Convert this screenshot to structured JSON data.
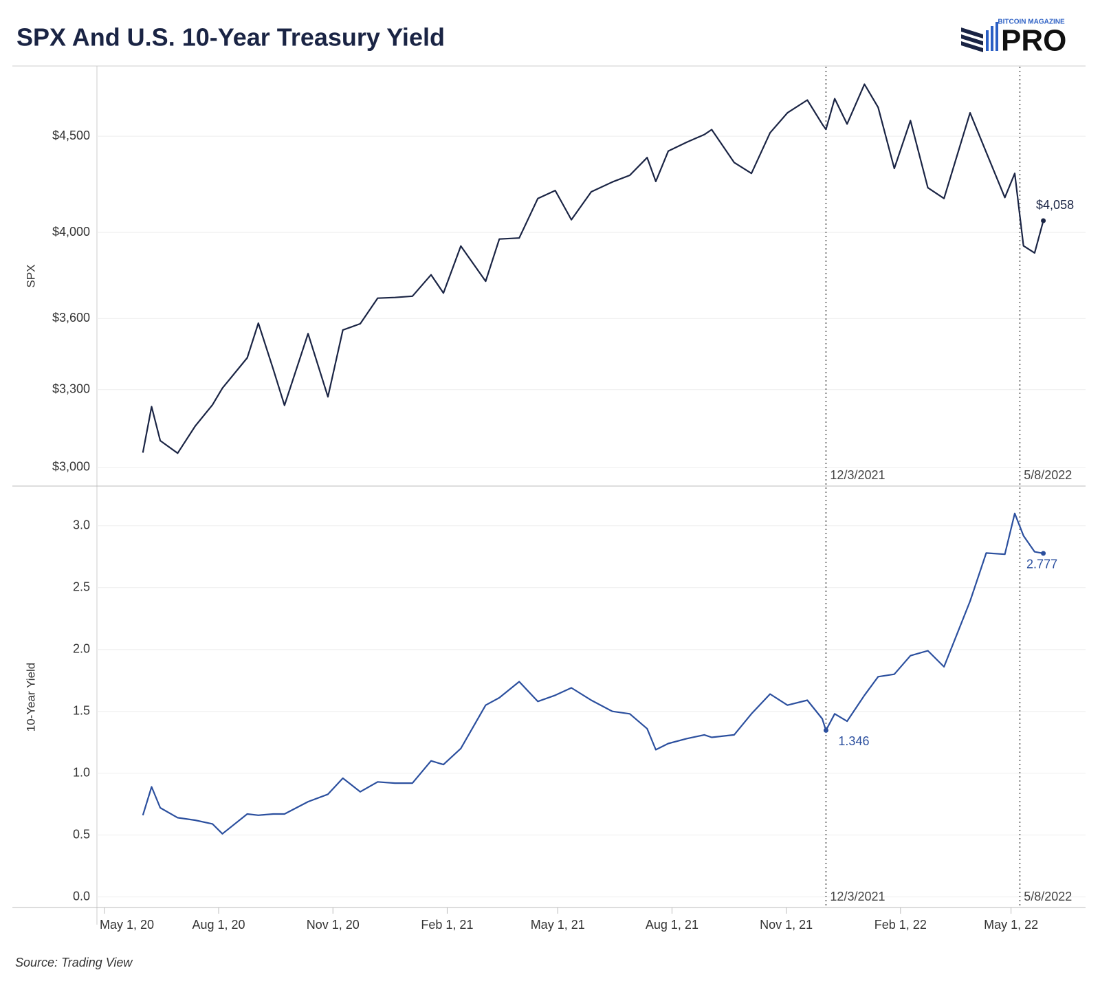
{
  "header": {
    "title": "SPX And U.S. 10-Year Treasury Yield",
    "logo_small": "BITCOIN MAGAZINE",
    "logo_main": "PRO"
  },
  "source": "Source: Trading View",
  "chart_data": [
    {
      "type": "line",
      "y_label": "SPX",
      "log": true,
      "grid": true,
      "x": [
        "2020-06-01",
        "2020-06-08",
        "2020-06-15",
        "2020-06-29",
        "2020-07-13",
        "2020-07-27",
        "2020-08-04",
        "2020-08-24",
        "2020-09-02",
        "2020-09-14",
        "2020-09-23",
        "2020-10-12",
        "2020-10-28",
        "2020-11-09",
        "2020-11-23",
        "2020-12-07",
        "2020-12-21",
        "2021-01-04",
        "2021-01-19",
        "2021-01-29",
        "2021-02-12",
        "2021-03-04",
        "2021-03-15",
        "2021-03-31",
        "2021-04-15",
        "2021-04-29",
        "2021-05-12",
        "2021-05-28",
        "2021-06-14",
        "2021-06-28",
        "2021-07-12",
        "2021-07-19",
        "2021-07-29",
        "2021-08-13",
        "2021-08-27",
        "2021-09-02",
        "2021-09-20",
        "2021-10-04",
        "2021-10-19",
        "2021-11-02",
        "2021-11-18",
        "2021-11-30",
        "2021-12-03",
        "2021-12-10",
        "2021-12-20",
        "2022-01-03",
        "2022-01-14",
        "2022-01-27",
        "2022-02-09",
        "2022-02-23",
        "2022-03-08",
        "2022-03-29",
        "2022-04-11",
        "2022-04-26",
        "2022-05-04",
        "2022-05-11",
        "2022-05-20",
        "2022-05-27"
      ],
      "series": [
        {
          "name": "SPX",
          "color": "#1a2444",
          "values": [
            3055,
            3232,
            3100,
            3053,
            3155,
            3239,
            3306,
            3431,
            3580,
            3383,
            3237,
            3534,
            3271,
            3550,
            3577,
            3691,
            3694,
            3700,
            3798,
            3714,
            3934,
            3768,
            3968,
            3973,
            4170,
            4211,
            4063,
            4204,
            4255,
            4290,
            4384,
            4258,
            4419,
            4468,
            4509,
            4537,
            4358,
            4300,
            4519,
            4631,
            4704,
            4567,
            4538,
            4712,
            4568,
            4796,
            4662,
            4326,
            4587,
            4225,
            4170,
            4631,
            4413,
            4175,
            4300,
            3935,
            3901,
            4058
          ],
          "value_labels": [
            null,
            null,
            null,
            null,
            null,
            null,
            null,
            null,
            null,
            null,
            null,
            null,
            null,
            null,
            null,
            null,
            null,
            null,
            null,
            null,
            null,
            null,
            null,
            null,
            null,
            null,
            null,
            null,
            null,
            null,
            null,
            null,
            null,
            null,
            null,
            null,
            null,
            null,
            null,
            null,
            null,
            null,
            null,
            null,
            null,
            null,
            null,
            null,
            null,
            null,
            null,
            null,
            null,
            null,
            null,
            null,
            null,
            "$4,058"
          ]
        }
      ],
      "xlim": [
        "2020-04-25",
        "2022-06-30"
      ],
      "ylim": [
        2935,
        4900
      ],
      "yticks": [
        {
          "value": 3000,
          "label": "$3,000"
        },
        {
          "value": 3300,
          "label": "$3,300"
        },
        {
          "value": 3600,
          "label": "$3,600"
        },
        {
          "value": 4000,
          "label": "$4,000"
        },
        {
          "value": 4500,
          "label": "$4,500"
        }
      ],
      "annotations": [
        {
          "x": "2021-12-03",
          "label": "12/3/2021"
        },
        {
          "x": "2022-05-08",
          "label": "5/8/2022"
        }
      ]
    },
    {
      "type": "line",
      "y_label": "10-Year Yield",
      "grid": true,
      "x": [
        "2020-06-01",
        "2020-06-08",
        "2020-06-15",
        "2020-06-29",
        "2020-07-13",
        "2020-07-27",
        "2020-08-04",
        "2020-08-24",
        "2020-09-02",
        "2020-09-14",
        "2020-09-23",
        "2020-10-12",
        "2020-10-28",
        "2020-11-09",
        "2020-11-23",
        "2020-12-07",
        "2020-12-21",
        "2021-01-04",
        "2021-01-19",
        "2021-01-29",
        "2021-02-12",
        "2021-03-04",
        "2021-03-15",
        "2021-03-31",
        "2021-04-15",
        "2021-04-29",
        "2021-05-12",
        "2021-05-28",
        "2021-06-14",
        "2021-06-28",
        "2021-07-12",
        "2021-07-19",
        "2021-07-29",
        "2021-08-13",
        "2021-08-27",
        "2021-09-02",
        "2021-09-20",
        "2021-10-04",
        "2021-10-19",
        "2021-11-02",
        "2021-11-18",
        "2021-11-30",
        "2021-12-03",
        "2021-12-10",
        "2021-12-20",
        "2022-01-03",
        "2022-01-14",
        "2022-01-27",
        "2022-02-09",
        "2022-02-23",
        "2022-03-08",
        "2022-03-29",
        "2022-04-11",
        "2022-04-26",
        "2022-05-04",
        "2022-05-11",
        "2022-05-20",
        "2022-05-27"
      ],
      "series": [
        {
          "name": "10-Year Yield",
          "color": "#2b4f9e",
          "values": [
            0.66,
            0.89,
            0.72,
            0.64,
            0.62,
            0.59,
            0.51,
            0.67,
            0.66,
            0.67,
            0.67,
            0.77,
            0.83,
            0.96,
            0.85,
            0.93,
            0.92,
            0.92,
            1.1,
            1.07,
            1.2,
            1.55,
            1.61,
            1.74,
            1.58,
            1.63,
            1.69,
            1.59,
            1.5,
            1.48,
            1.36,
            1.19,
            1.24,
            1.28,
            1.31,
            1.29,
            1.31,
            1.48,
            1.64,
            1.55,
            1.59,
            1.44,
            1.346,
            1.48,
            1.42,
            1.63,
            1.78,
            1.8,
            1.95,
            1.99,
            1.86,
            2.39,
            2.78,
            2.77,
            3.1,
            2.92,
            2.79,
            2.777
          ],
          "value_labels": [
            null,
            null,
            null,
            null,
            null,
            null,
            null,
            null,
            null,
            null,
            null,
            null,
            null,
            null,
            null,
            null,
            null,
            null,
            null,
            null,
            null,
            null,
            null,
            null,
            null,
            null,
            null,
            null,
            null,
            null,
            null,
            null,
            null,
            null,
            null,
            null,
            null,
            null,
            null,
            null,
            null,
            null,
            "1.346",
            null,
            null,
            null,
            null,
            null,
            null,
            null,
            null,
            null,
            null,
            null,
            null,
            null,
            null,
            "2.777"
          ]
        }
      ],
      "xlim": [
        "2020-04-25",
        "2022-06-30"
      ],
      "xticks": [
        {
          "value": "2020-05-01",
          "label": "May 1, 20"
        },
        {
          "value": "2020-08-01",
          "label": "Aug 1, 20"
        },
        {
          "value": "2020-11-01",
          "label": "Nov 1, 20"
        },
        {
          "value": "2021-02-01",
          "label": "Feb 1, 21"
        },
        {
          "value": "2021-05-01",
          "label": "May 1, 21"
        },
        {
          "value": "2021-08-01",
          "label": "Aug 1, 21"
        },
        {
          "value": "2021-11-01",
          "label": "Nov 1, 21"
        },
        {
          "value": "2022-02-01",
          "label": "Feb 1, 22"
        },
        {
          "value": "2022-05-01",
          "label": "May 1, 22"
        }
      ],
      "ylim": [
        -0.08,
        3.31
      ],
      "yticks": [
        {
          "value": 0,
          "label": "0.0"
        },
        0.5,
        {
          "value": 1,
          "label": "1.0"
        },
        1.5,
        {
          "value": 2,
          "label": "2.0"
        },
        2.5,
        {
          "value": 3,
          "label": "3.0"
        }
      ],
      "annotations": [
        {
          "x": "2021-12-03",
          "label": "12/3/2021"
        },
        {
          "x": "2022-05-08",
          "label": "5/8/2022"
        }
      ]
    }
  ]
}
